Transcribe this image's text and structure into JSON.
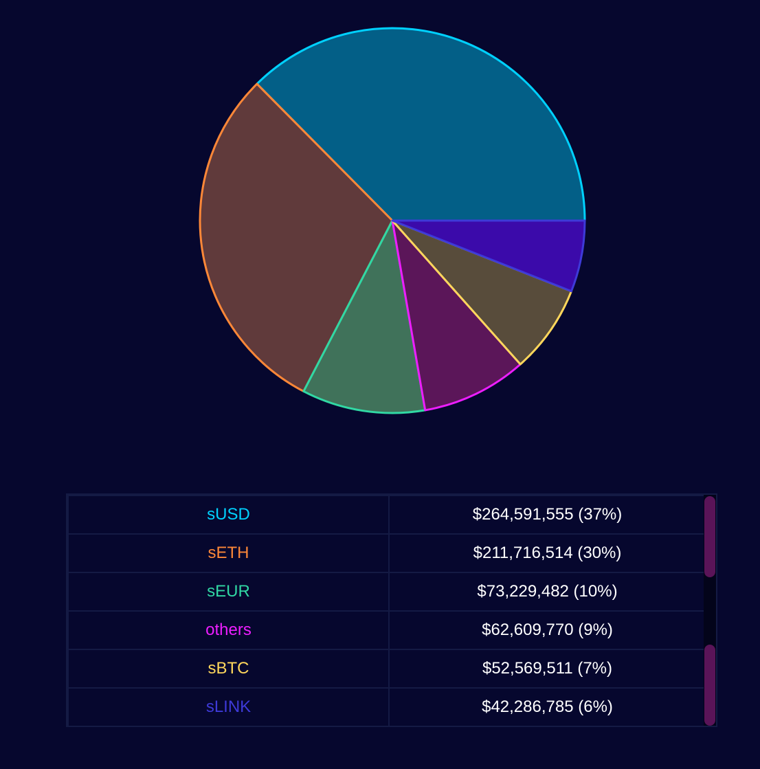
{
  "chart_data": {
    "type": "pie",
    "slices": [
      {
        "label": "sUSD",
        "value": 264591555,
        "percent": 37,
        "color": "#00d1ff",
        "fill": "#035f87"
      },
      {
        "label": "sETH",
        "value": 211716514,
        "percent": 30,
        "color": "#fc8738",
        "fill": "#603a3b"
      },
      {
        "label": "sEUR",
        "value": 73229482,
        "percent": 10,
        "color": "#31d8a4",
        "fill": "#40725a"
      },
      {
        "label": "others",
        "value": 62609770,
        "percent": 9,
        "color": "#ed1eff",
        "fill": "#5b1659"
      },
      {
        "label": "sBTC",
        "value": 52569511,
        "percent": 7,
        "color": "#ffd75c",
        "fill": "#584c3b"
      },
      {
        "label": "sLINK",
        "value": 42286785,
        "percent": 6,
        "color": "#3e3ad8",
        "fill": "#3b0aaa"
      }
    ]
  },
  "legend": {
    "rows": [
      {
        "name": "sUSD",
        "amount": "$264,591,555 (37%)",
        "color": "#00d1ff"
      },
      {
        "name": "sETH",
        "amount": "$211,716,514 (30%)",
        "color": "#fc8738"
      },
      {
        "name": "sEUR",
        "amount": "$73,229,482 (10%)",
        "color": "#31d8a4"
      },
      {
        "name": "others",
        "amount": "$62,609,770 (9%)",
        "color": "#ed1eff"
      },
      {
        "name": "sBTC",
        "amount": "$52,569,511 (7%)",
        "color": "#ffd75c"
      },
      {
        "name": "sLINK",
        "amount": "$42,286,785 (6%)",
        "color": "#3e3ad8"
      }
    ]
  }
}
